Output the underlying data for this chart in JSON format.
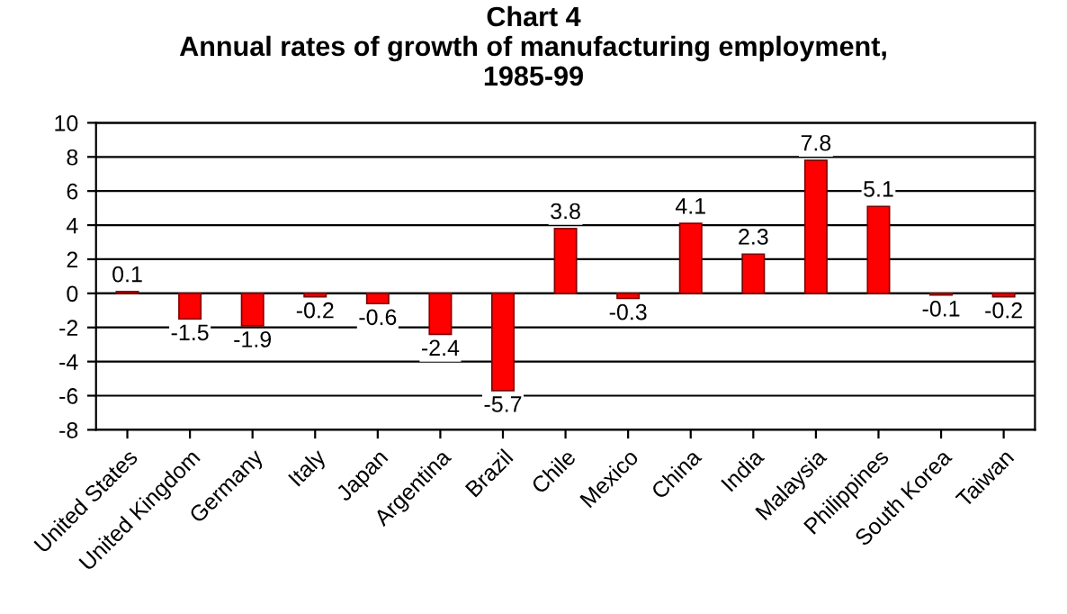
{
  "chart_data": {
    "type": "bar",
    "title": "Chart 4\nAnnual rates of growth of manufacturing employment,\n1985-99",
    "categories": [
      "United States",
      "United Kingdom",
      "Germany",
      "Italy",
      "Japan",
      "Argentina",
      "Brazil",
      "Chile",
      "Mexico",
      "China",
      "India",
      "Malaysia",
      "Philippines",
      "South Korea",
      "Taiwan"
    ],
    "values": [
      0.1,
      -1.5,
      -1.9,
      -0.2,
      -0.6,
      -2.4,
      -5.7,
      3.8,
      -0.3,
      4.1,
      2.3,
      7.8,
      5.1,
      -0.1,
      -0.2
    ],
    "color": "#ff0000",
    "ylim": [
      -8,
      10
    ],
    "yticks": [
      -8,
      -6,
      -4,
      -2,
      0,
      2,
      4,
      6,
      8,
      10
    ],
    "grid": "y",
    "data_labels": true
  }
}
